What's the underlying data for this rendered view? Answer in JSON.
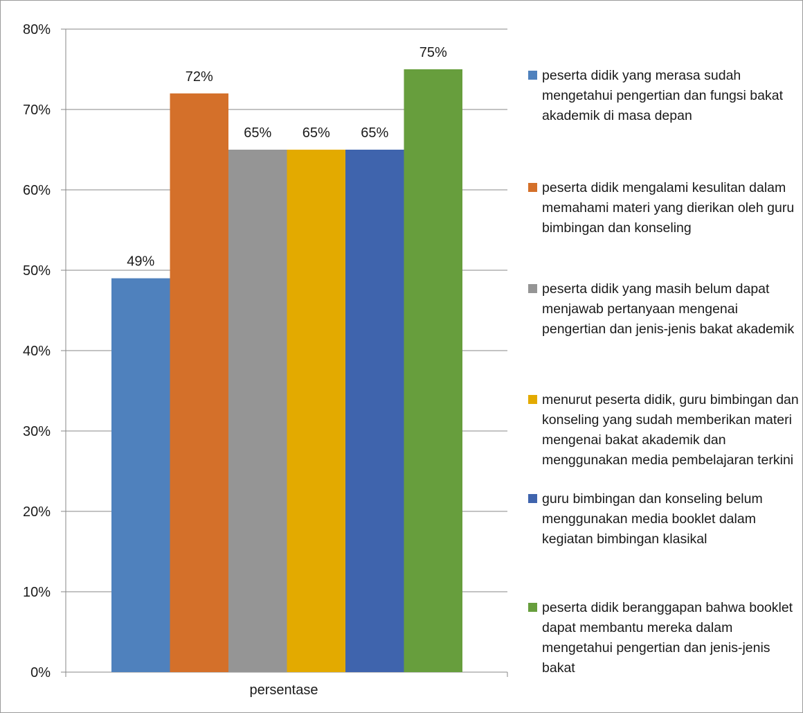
{
  "chart_data": {
    "type": "bar",
    "categories": [
      "persentase"
    ],
    "series": [
      {
        "name": "peserta didik yang merasa sudah mengetahui pengertian dan fungsi bakat akademik di masa depan",
        "values": [
          49
        ],
        "label": "49%",
        "color": "#4f81bd"
      },
      {
        "name": "peserta didik mengalami kesulitan dalam memahami materi yang dierikan oleh guru bimbingan dan konseling",
        "values": [
          72
        ],
        "label": "72%",
        "color": "#d4702a"
      },
      {
        "name": "peserta didik yang masih belum dapat menjawab pertanyaan mengenai pengertian dan jenis-jenis bakat akademik",
        "values": [
          65
        ],
        "label": "65%",
        "color": "#959595"
      },
      {
        "name": "menurut peserta didik, guru bimbingan dan konseling yang sudah memberikan materi mengenai bakat akademik dan menggunakan media pembelajaran terkini",
        "values": [
          65
        ],
        "label": "65%",
        "color": "#e3aa00"
      },
      {
        "name": "guru bimbingan dan konseling belum menggunakan media booklet dalam kegiatan bimbingan klasikal",
        "values": [
          65
        ],
        "label": "65%",
        "color": "#3f64ad"
      },
      {
        "name": "peserta didik beranggapan bahwa booklet dapat membantu mereka dalam mengetahui pengertian dan jenis-jenis bakat",
        "values": [
          75
        ],
        "label": "75%",
        "color": "#679e3d"
      }
    ],
    "yticks": [
      "0%",
      "10%",
      "20%",
      "30%",
      "40%",
      "50%",
      "60%",
      "70%",
      "80%"
    ],
    "ylim": [
      0,
      80
    ],
    "grid": true,
    "legend_position": "right",
    "title": "",
    "xlabel": "",
    "ylabel": ""
  }
}
